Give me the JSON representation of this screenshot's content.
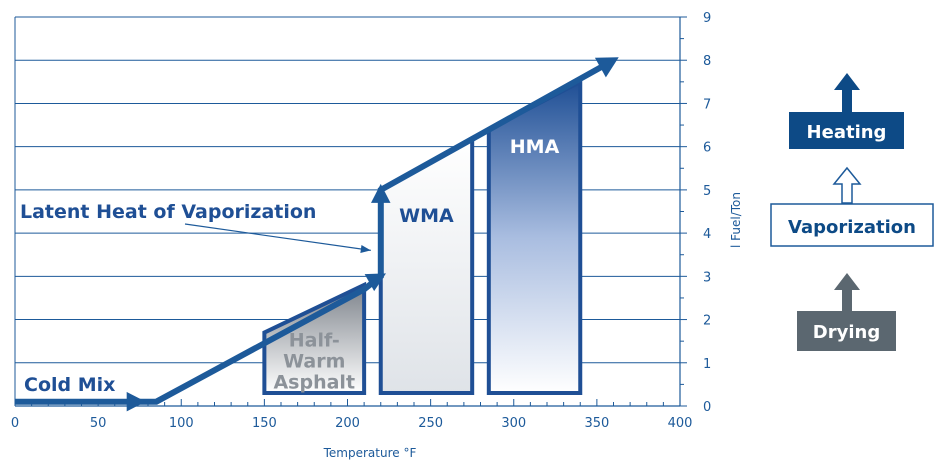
{
  "chart_data": {
    "type": "line",
    "xlabel": "Temperature °F",
    "ylabel": "l Fuel/Ton",
    "xlim": [
      0,
      400
    ],
    "ylim": [
      0,
      9
    ],
    "x_ticks": [
      0,
      50,
      100,
      150,
      200,
      250,
      300,
      350,
      400
    ],
    "y_ticks": [
      0,
      1,
      2,
      3,
      4,
      5,
      6,
      7,
      8,
      9
    ],
    "grid": "horizontal",
    "series": [
      {
        "values": [
          [
            0,
            0.1
          ],
          [
            75,
            0.1
          ],
          [
            85,
            0.1
          ],
          [
            210,
            2.7
          ],
          [
            220,
            3.0
          ],
          [
            220,
            5.0
          ],
          [
            360,
            8.0
          ]
        ]
      }
    ],
    "regions": [
      {
        "label": "Half-\nWarm\nAsphalt",
        "x_start": 150,
        "x_end": 210,
        "y_top_left": 1.7,
        "y_top_right": 2.8
      },
      {
        "label": "WMA",
        "x_start": 220,
        "x_end": 275,
        "y_top_left": 5.0,
        "y_top_right": 6.2
      },
      {
        "label": "HMA",
        "x_start": 285,
        "x_end": 340,
        "y_top_left": 6.4,
        "y_top_right": 7.5
      }
    ],
    "annotations": [
      {
        "text": "Cold Mix",
        "x": 5,
        "y": 0.35
      },
      {
        "text": "Latent Heat of Vaporization",
        "x": 5,
        "y": 4.5,
        "arrow_to": [
          205,
          3.6
        ]
      }
    ]
  },
  "legend": {
    "heating": "Heating",
    "vaporization": "Vaporization",
    "drying": "Drying",
    "colors": {
      "heating": "#0d4a86",
      "vaporization_border": "#1d5a9a",
      "drying": "#5b6770"
    }
  },
  "colors": {
    "line": "#1d5a9a",
    "grid": "#1d5a9a",
    "text": "#1d5a9a",
    "region_dark": "#1f4f95",
    "region_grey": "#8c9299"
  }
}
